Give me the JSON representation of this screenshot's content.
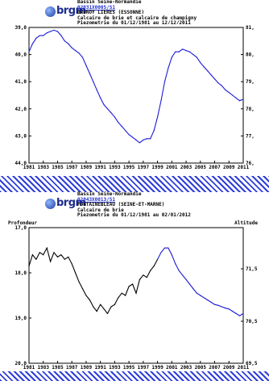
{
  "charts": [
    {
      "logo": "brgm",
      "basin": "Bassin Seine-Normandie",
      "code": "02931X0005/S1",
      "location": "BRUNOY LIERES (ESSONNE)",
      "aquifer": "Calcaire de brie et calcaire de champigny",
      "period": "Piezometrie du 01/12/1981 au 12/12/2011",
      "ylabel_left": "Profondeur",
      "ylabel_right": "Altitu",
      "left_ticks": [
        "39,0",
        "40,0",
        "41,0",
        "42,0",
        "43,0",
        "44,0"
      ],
      "right_ticks": [
        "81,",
        "80,",
        "79,",
        "78,",
        "77,",
        "76,"
      ],
      "x_ticks": [
        "1981",
        "1983",
        "1985",
        "1987",
        "1989",
        "1991",
        "1993",
        "1995",
        "1997",
        "1999",
        "2001",
        "2003",
        "2005",
        "2007",
        "2009",
        "2011"
      ],
      "colors": {
        "line": "#1a1ad6"
      }
    },
    {
      "logo": "brgm",
      "basin": "Bassin Seine-Normandie",
      "code": "02943X0013/S1",
      "location": "FONTAINEBLEAU (SEINE-ET-MARNE)",
      "aquifer": "Calcaire de brie",
      "period": "Piezometrie du 01/12/1981 au 02/01/2012",
      "ylabel_left": "Profondeur",
      "ylabel_right": "Altitude",
      "left_ticks": [
        "17,0",
        "18,0",
        "19,0",
        "20,0"
      ],
      "right_ticks": [
        "71,5",
        "70,5",
        "69,5"
      ],
      "x_ticks": [
        "1981",
        "1983",
        "1985",
        "1987",
        "1989",
        "1991",
        "1993",
        "1995",
        "1997",
        "1999",
        "2001",
        "2003",
        "2005",
        "2007",
        "2009",
        "2011"
      ],
      "colors": {
        "line_early": "#000000",
        "line_late": "#1a1ad6"
      }
    }
  ],
  "chart_data": [
    {
      "type": "line",
      "title": "",
      "xlabel": "",
      "ylabel": "Profondeur",
      "y_inverted": true,
      "ylim": [
        39.0,
        44.0
      ],
      "xlim": [
        1981,
        2011
      ],
      "grid": false,
      "series": [
        {
          "x": [
            1981.0,
            1981.5,
            1982.0,
            1982.5,
            1983.0,
            1983.5,
            1984.0,
            1984.5,
            1985.0,
            1985.5,
            1986.0,
            1986.5,
            1987.0,
            1987.5,
            1988.0,
            1988.5,
            1989.0,
            1989.5,
            1990.0,
            1990.5,
            1991.0,
            1991.5,
            1992.0,
            1992.5,
            1993.0,
            1993.5,
            1994.0,
            1994.5,
            1995.0,
            1995.5,
            1996.0,
            1996.5,
            1997.0,
            1997.5,
            1998.0,
            1998.5,
            1999.0,
            1999.5,
            2000.0,
            2000.5,
            2001.0,
            2001.5,
            2002.0,
            2002.5,
            2003.0,
            2003.5,
            2004.0,
            2004.5,
            2005.0,
            2005.5,
            2006.0,
            2006.5,
            2007.0,
            2007.5,
            2008.0,
            2008.5,
            2009.0,
            2009.5,
            2010.0,
            2010.5,
            2011.0
          ],
          "y": [
            39.9,
            39.6,
            39.4,
            39.3,
            39.3,
            39.2,
            39.15,
            39.1,
            39.15,
            39.3,
            39.5,
            39.6,
            39.75,
            39.85,
            39.95,
            40.1,
            40.4,
            40.7,
            41.0,
            41.3,
            41.6,
            41.85,
            42.0,
            42.15,
            42.3,
            42.5,
            42.65,
            42.8,
            42.95,
            43.05,
            43.15,
            43.25,
            43.15,
            43.1,
            43.1,
            42.8,
            42.3,
            41.7,
            41.0,
            40.5,
            40.1,
            39.9,
            39.9,
            39.8,
            39.85,
            39.9,
            40.0,
            40.1,
            40.3,
            40.45,
            40.6,
            40.75,
            40.9,
            41.05,
            41.15,
            41.3,
            41.4,
            41.5,
            41.6,
            41.7,
            41.65
          ]
        }
      ]
    },
    {
      "type": "line",
      "title": "",
      "xlabel": "",
      "ylabel": "Profondeur",
      "y_inverted": true,
      "ylim": [
        17.0,
        20.0
      ],
      "xlim": [
        1981,
        2011
      ],
      "grid": false,
      "series": [
        {
          "x": [
            1981.0,
            1981.5,
            1982.0,
            1982.5,
            1983.0,
            1983.5,
            1984.0,
            1984.5,
            1985.0,
            1985.5,
            1986.0,
            1986.5,
            1987.0,
            1987.5,
            1988.0,
            1988.5,
            1989.0,
            1989.5,
            1990.0,
            1990.5,
            1991.0,
            1991.5,
            1992.0,
            1992.5,
            1993.0,
            1993.5,
            1994.0,
            1994.5,
            1995.0,
            1995.5,
            1996.0,
            1996.5,
            1997.0,
            1997.5,
            1998.0,
            1998.5,
            1999.0,
            1999.5,
            2000.0,
            2000.5,
            2001.0,
            2001.5,
            2002.0,
            2002.5,
            2003.0,
            2003.5,
            2004.0,
            2004.5,
            2005.0,
            2005.5,
            2006.0,
            2006.5,
            2007.0,
            2007.5,
            2008.0,
            2008.5,
            2009.0,
            2009.5,
            2010.0,
            2010.5,
            2011.0
          ],
          "y": [
            17.85,
            17.6,
            17.7,
            17.55,
            17.6,
            17.45,
            17.75,
            17.55,
            17.65,
            17.6,
            17.7,
            17.65,
            17.8,
            18.0,
            18.2,
            18.35,
            18.5,
            18.6,
            18.75,
            18.85,
            18.7,
            18.8,
            18.9,
            18.75,
            18.7,
            18.55,
            18.45,
            18.5,
            18.3,
            18.25,
            18.45,
            18.15,
            18.05,
            18.1,
            17.95,
            17.85,
            17.7,
            17.55,
            17.45,
            17.45,
            17.6,
            17.8,
            17.95,
            18.05,
            18.15,
            18.25,
            18.35,
            18.45,
            18.5,
            18.55,
            18.6,
            18.65,
            18.7,
            18.72,
            18.75,
            18.78,
            18.8,
            18.85,
            18.9,
            18.95,
            18.9
          ]
        }
      ]
    }
  ]
}
